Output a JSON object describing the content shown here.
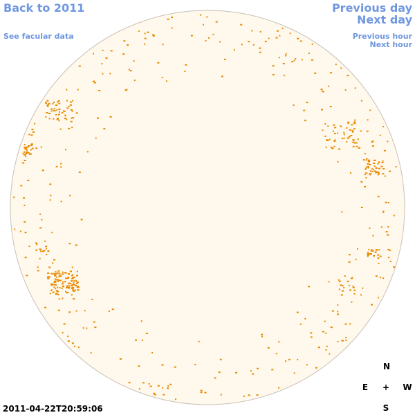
{
  "nav": {
    "back": "Back to 2011",
    "facular": "See facular data",
    "previous_day": "Previous day",
    "next_day": "Next day",
    "previous_hour": "Previous hour",
    "next_hour": "Next hour"
  },
  "timestamp": "2011-04-22T20:59:06",
  "compass": {
    "north": "N",
    "east": "E",
    "center": "+",
    "west": "W",
    "south": "S"
  }
}
